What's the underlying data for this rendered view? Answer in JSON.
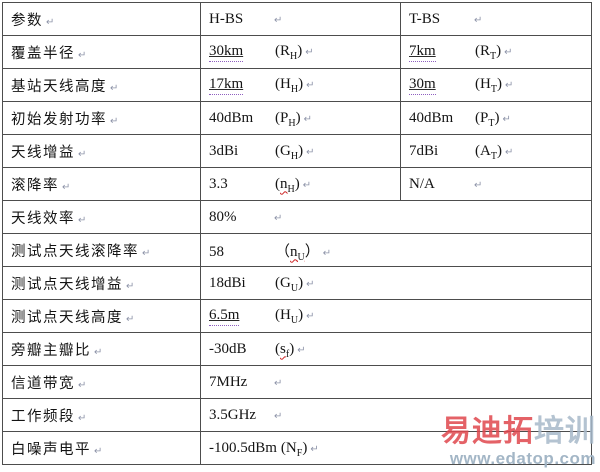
{
  "marks": {
    "return": "↵"
  },
  "watermark": {
    "brand_red": "易迪拓",
    "brand_blue": "培训",
    "url": "www.edatop.com",
    "red_color": "#e0474d",
    "blue_color": "#a7b9ca"
  },
  "table": {
    "columns": [
      "参数",
      "H-BS",
      "T-BS"
    ],
    "rows": [
      {
        "label": "参数",
        "h": {
          "value": "H-BS"
        },
        "t": {
          "value": "T-BS"
        }
      },
      {
        "label": "覆盖半径",
        "h": {
          "value": "30km",
          "open": "(",
          "sym": "R",
          "sub": "H",
          "close": ")"
        },
        "t": {
          "value": "7km",
          "open": "(",
          "sym": "R",
          "sub": "T",
          "close": ")"
        }
      },
      {
        "label": "基站天线高度",
        "h": {
          "value": "17km",
          "open": "(",
          "sym": "H",
          "sub": "H",
          "close": ")"
        },
        "t": {
          "value": "30m",
          "open": "(",
          "sym": "H",
          "sub": "T",
          "close": ")"
        }
      },
      {
        "label": "初始发射功率",
        "h": {
          "value": "40dBm",
          "open": "(",
          "sym": "P",
          "sub": "H",
          "close": ")"
        },
        "t": {
          "value": "40dBm",
          "open": "(",
          "sym": "P",
          "sub": "T",
          "close": ")"
        }
      },
      {
        "label": "天线增益",
        "h": {
          "value": "3dBi",
          "open": "(",
          "sym": "G",
          "sub": "H",
          "close": ")"
        },
        "t": {
          "value": "7dBi",
          "open": "(",
          "sym": "A",
          "sub": "T",
          "close": ")"
        }
      },
      {
        "label": "滚降率",
        "h": {
          "value": "3.3",
          "open": "(",
          "sym": "n",
          "sub": "H",
          "close": ")"
        },
        "t": {
          "value": "N/A"
        }
      },
      {
        "label": "天线效率",
        "m": {
          "value": "80%"
        }
      },
      {
        "label": "测试点天线滚降率",
        "m": {
          "value": "58",
          "open": "（",
          "sym": "n",
          "sub": "U",
          "close": "）"
        }
      },
      {
        "label": "测试点天线增益",
        "m": {
          "value": "18dBi",
          "open": "(",
          "sym": "G",
          "sub": "U",
          "close": ")"
        }
      },
      {
        "label": "测试点天线高度",
        "m": {
          "value": "6.5m",
          "open": "(",
          "sym": "H",
          "sub": "U",
          "close": ")"
        }
      },
      {
        "label": "旁瓣主瓣比",
        "m": {
          "value": "-30dB",
          "open": "(",
          "sym": "s",
          "sub": "f",
          "close": ")"
        }
      },
      {
        "label": "信道带宽",
        "m": {
          "value": "7MHz"
        }
      },
      {
        "label": "工作频段",
        "m": {
          "value": "3.5GHz"
        }
      },
      {
        "label": "白噪声电平",
        "m": {
          "value": "-100.5dBm",
          "open": "(",
          "sym": "N",
          "sub": "F",
          "close": ")"
        }
      }
    ]
  }
}
